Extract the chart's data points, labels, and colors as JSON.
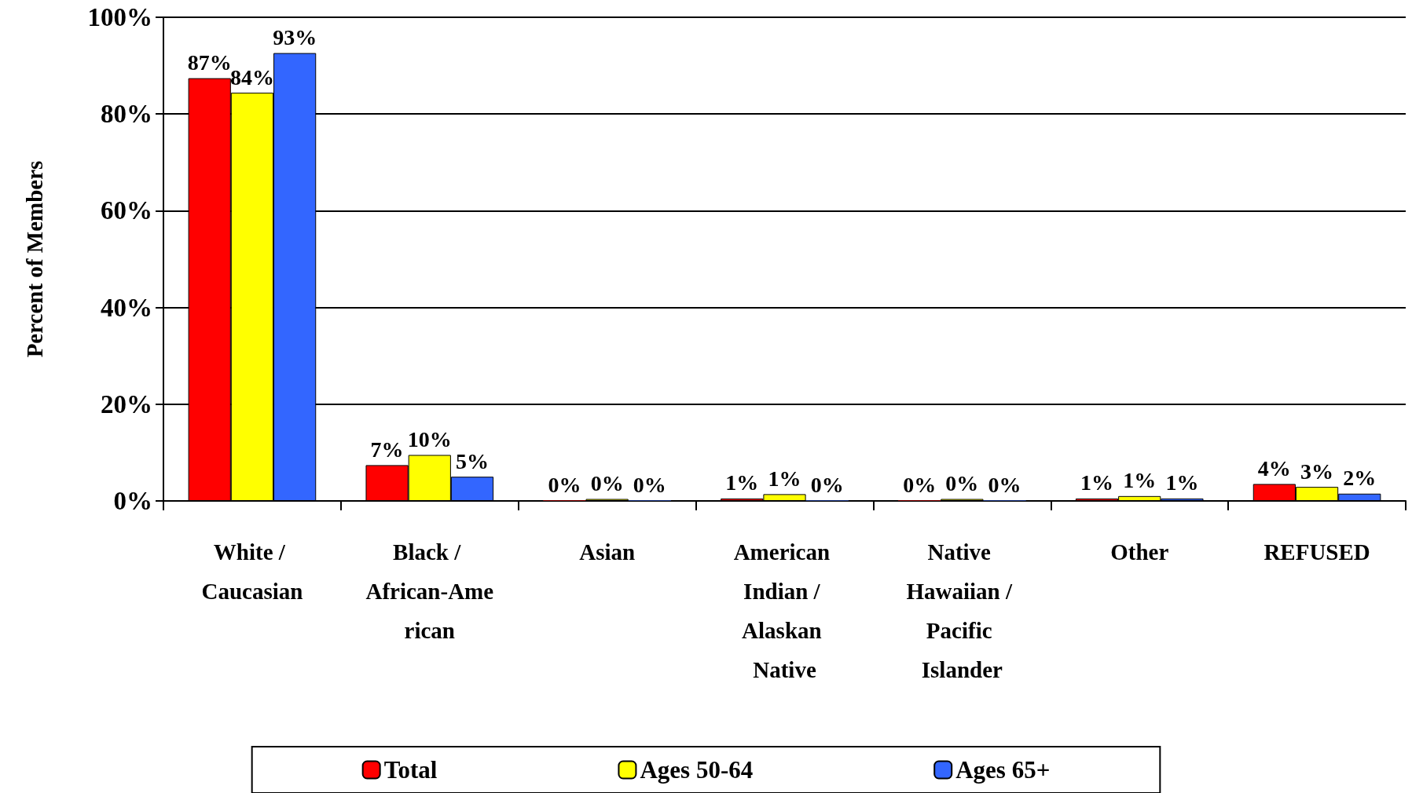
{
  "chart_data": {
    "type": "bar",
    "ylabel": "Percent of Members",
    "categories": [
      "White / Caucasian",
      "Black / African-American",
      "Asian",
      "American Indian / Alaskan Native",
      "Native Hawaiian / Pacific Islander",
      "Other",
      "REFUSED"
    ],
    "series": [
      {
        "name": "Total",
        "color": "#ff0000",
        "values": [
          87.4,
          7.4,
          0.1,
          0.5,
          0.1,
          0.5,
          3.5
        ],
        "value_labels": [
          "87%",
          "7%",
          "0%",
          "1%",
          "0%",
          "1%",
          "4%"
        ]
      },
      {
        "name": "Ages 50-64",
        "color": "#ffff00",
        "values": [
          84.4,
          9.5,
          0.4,
          1.4,
          0.4,
          1.0,
          2.9
        ],
        "value_labels": [
          "84%",
          "10%",
          "0%",
          "1%",
          "0%",
          "1%",
          "3%"
        ]
      },
      {
        "name": "Ages 65+",
        "color": "#3366ff",
        "values": [
          92.6,
          5.0,
          0.1,
          0.1,
          0.1,
          0.5,
          1.5
        ],
        "value_labels": [
          "93%",
          "5%",
          "0%",
          "0%",
          "0%",
          "1%",
          "2%"
        ]
      }
    ],
    "ylim": [
      0,
      100
    ],
    "yticks": [
      {
        "value": 0,
        "label": "0%"
      },
      {
        "value": 20,
        "label": "20%"
      },
      {
        "value": 40,
        "label": "40%"
      },
      {
        "value": 60,
        "label": "60%"
      },
      {
        "value": 80,
        "label": "80%"
      },
      {
        "value": 100,
        "label": "100%"
      }
    ],
    "grid": "y",
    "legend": "bottom"
  }
}
